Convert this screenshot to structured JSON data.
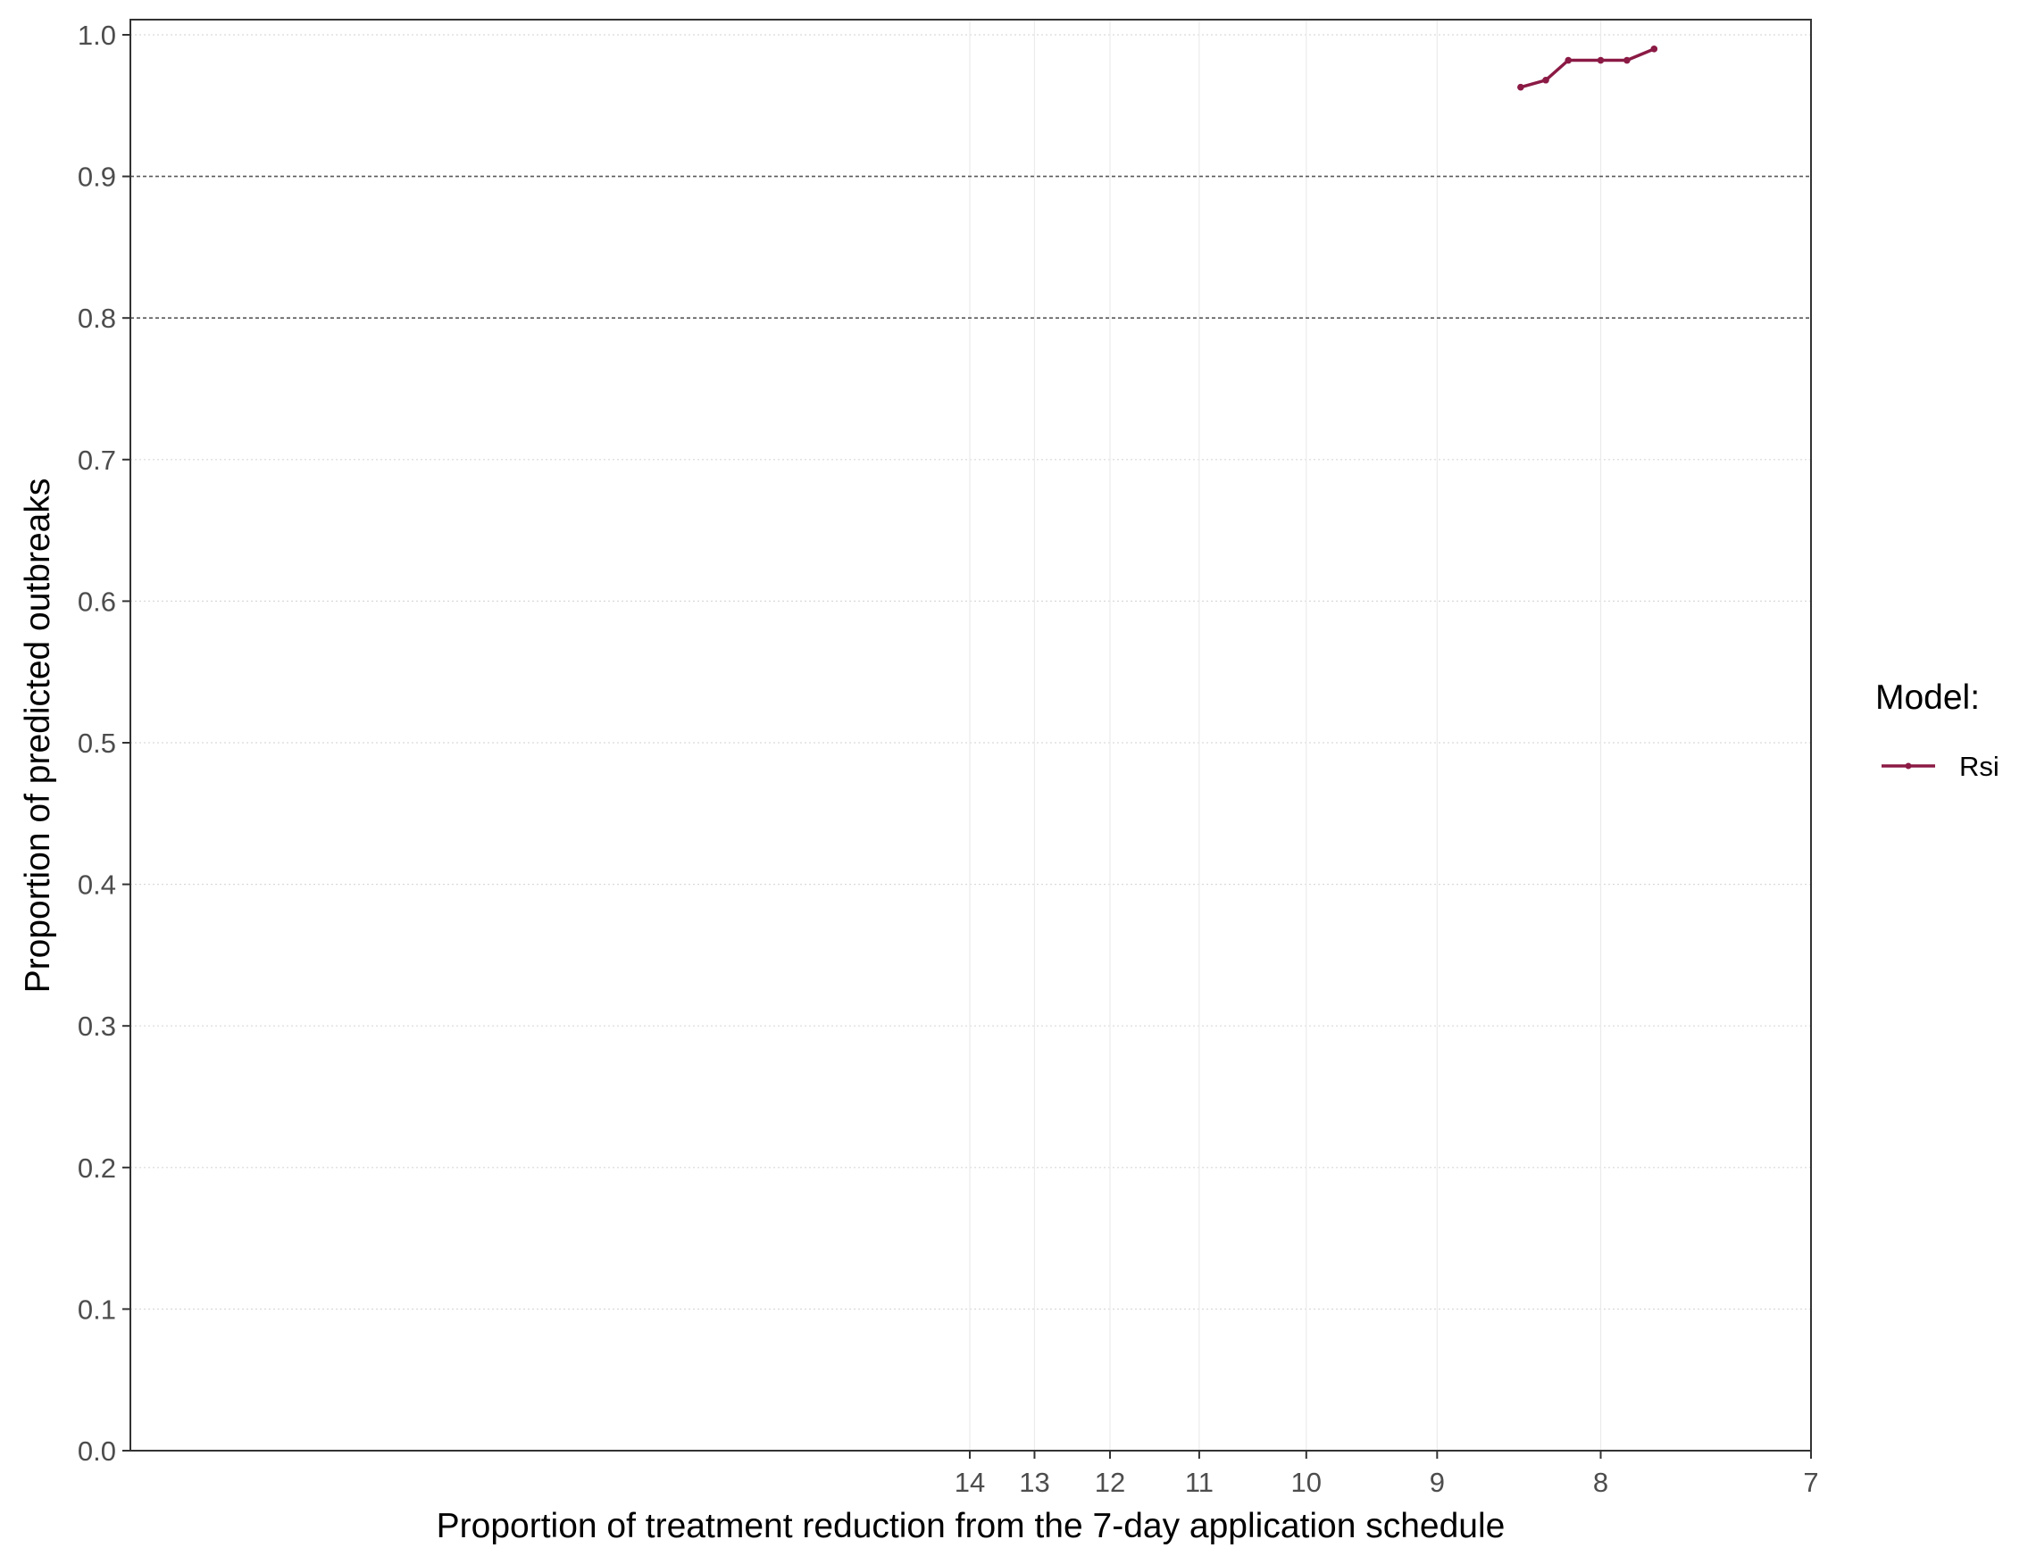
{
  "chart_data": {
    "type": "line",
    "title": "",
    "xlabel": "Proportion of treatment reduction from the 7-day application schedule",
    "ylabel": "Proportion of predicted outbreaks",
    "x_scale": "reciprocal",
    "x_ticks": [
      14,
      13,
      12,
      11,
      10,
      9,
      8,
      7
    ],
    "xlim": [
      7,
      14
    ],
    "ylim": [
      0,
      1
    ],
    "y_ticks": [
      0.0,
      0.1,
      0.2,
      0.3,
      0.4,
      0.5,
      0.6,
      0.7,
      0.8,
      0.9,
      1.0
    ],
    "y_tick_labels": [
      "0.0",
      "0.1",
      "0.2",
      "0.3",
      "0.4",
      "0.5",
      "0.6",
      "0.7",
      "0.8",
      "0.9",
      "1.0"
    ],
    "reference_lines_y": [
      0.8,
      0.9
    ],
    "grid": true,
    "legend": {
      "title": "Model:",
      "position": "right"
    },
    "series": [
      {
        "name": "Rsi",
        "color": "#8b1a45",
        "x": [
          8.46,
          8.31,
          8.18,
          8.0,
          7.86,
          7.72
        ],
        "y": [
          0.963,
          0.968,
          0.982,
          0.982,
          0.982,
          0.99
        ]
      }
    ]
  }
}
